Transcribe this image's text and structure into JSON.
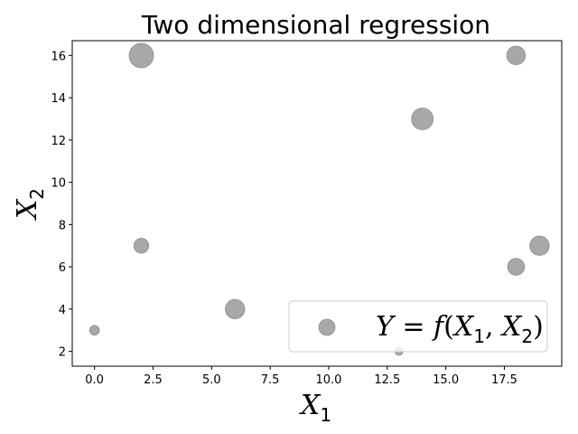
{
  "chart_data": {
    "type": "scatter",
    "title": "Two dimensional regression",
    "xlabel": {
      "base": "X",
      "sub": "1"
    },
    "ylabel": {
      "base": "X",
      "sub": "2"
    },
    "xlim": [
      -0.95,
      19.95
    ],
    "ylim": [
      1.3,
      16.7
    ],
    "xticks": [
      0.0,
      2.5,
      5.0,
      7.5,
      10.0,
      12.5,
      15.0,
      17.5
    ],
    "xtick_labels": [
      "0.0",
      "2.5",
      "5.0",
      "7.5",
      "10.0",
      "12.5",
      "15.0",
      "17.5"
    ],
    "yticks": [
      2,
      4,
      6,
      8,
      10,
      12,
      14,
      16
    ],
    "ytick_labels": [
      "2",
      "4",
      "6",
      "8",
      "10",
      "12",
      "14",
      "16"
    ],
    "grid": false,
    "legend_position": "lower right",
    "marker_color": "#999999",
    "series": [
      {
        "name": "Y = f(X1, X2)",
        "points": [
          {
            "x": 0,
            "y": 3,
            "size": 3
          },
          {
            "x": 2,
            "y": 16,
            "size": 19
          },
          {
            "x": 2,
            "y": 7,
            "size": 7
          },
          {
            "x": 6,
            "y": 4,
            "size": 12
          },
          {
            "x": 13,
            "y": 2,
            "size": 2
          },
          {
            "x": 14,
            "y": 13,
            "size": 15
          },
          {
            "x": 18,
            "y": 16,
            "size": 11
          },
          {
            "x": 18,
            "y": 6,
            "size": 9
          },
          {
            "x": 19,
            "y": 7,
            "size": 12
          }
        ]
      }
    ]
  },
  "legend": {
    "label_parts": [
      "Y",
      " = ",
      "f",
      "(",
      "X",
      "1",
      ", ",
      "X",
      "2",
      ")"
    ]
  }
}
